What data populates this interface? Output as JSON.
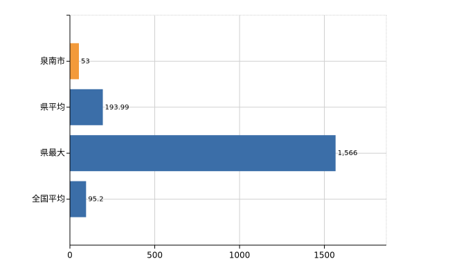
{
  "chart_data": {
    "type": "bar",
    "orientation": "horizontal",
    "categories": [
      "泉南市",
      "県平均",
      "県最大",
      "全国平均"
    ],
    "values": [
      53,
      193.99,
      1566,
      95.2
    ],
    "value_labels": [
      "53",
      "193.99",
      "1,566",
      "95.2"
    ],
    "colors": [
      "#f39a3a",
      "#3b6ea8",
      "#3b6ea8",
      "#3b6ea8"
    ],
    "xlim": [
      0,
      1865
    ],
    "xticks": [
      0,
      500,
      1000,
      1500
    ],
    "grid": true
  }
}
